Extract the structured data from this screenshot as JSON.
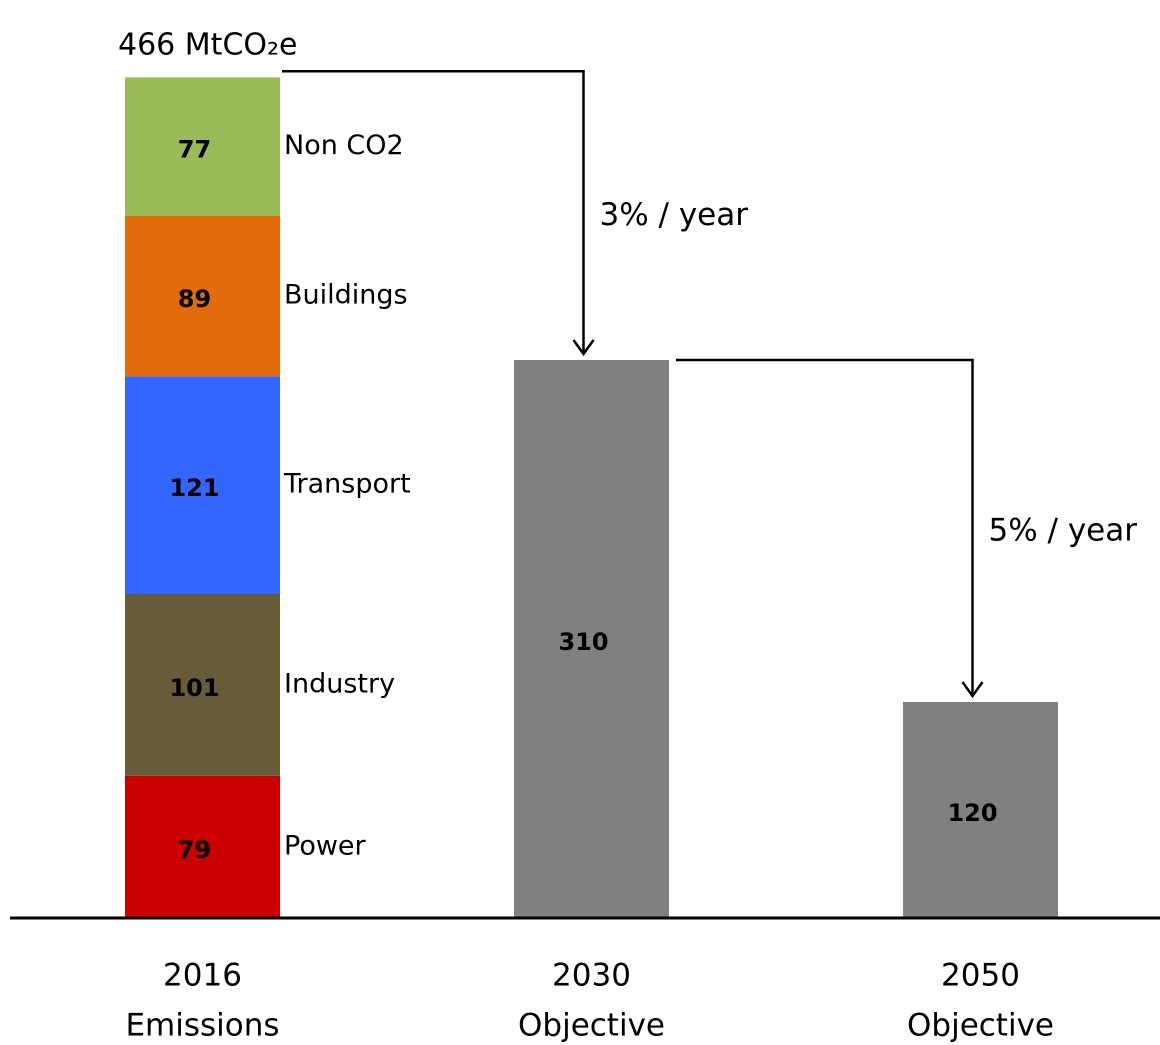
{
  "chart_data": {
    "type": "stacked_bar",
    "total": 466,
    "total_label": "466 MtCO₂e",
    "categories": [
      [
        "2016",
        "Emissions"
      ],
      [
        "2030",
        "Objective"
      ],
      [
        "2050",
        "Objective"
      ]
    ],
    "series": [
      {
        "name": "Power",
        "color": "#cc0000",
        "values": [
          79,
          null,
          null
        ]
      },
      {
        "name": "Industry",
        "color": "#665c38",
        "values": [
          101,
          null,
          null
        ]
      },
      {
        "name": "Transport",
        "color": "#3366ff",
        "values": [
          121,
          null,
          null
        ]
      },
      {
        "name": "Buildings",
        "color": "#e36c0a",
        "values": [
          89,
          null,
          null
        ]
      },
      {
        "name": "Non CO2",
        "color": "#9bbb59",
        "values": [
          77,
          null,
          null
        ]
      },
      {
        "color": "#808080",
        "values": [
          null,
          310,
          120
        ]
      }
    ],
    "annotations": [
      "3% / year",
      "5% / year"
    ],
    "ylim": [
      0,
      510
    ]
  }
}
